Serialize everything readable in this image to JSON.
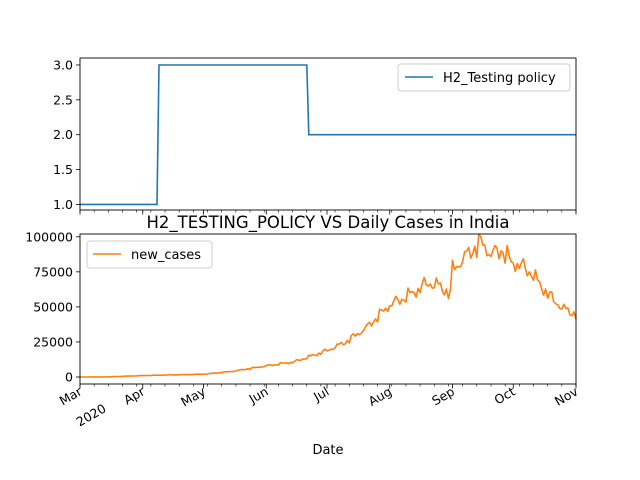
{
  "chart_data": [
    {
      "type": "line",
      "title": "",
      "xlabel": "",
      "ylabel": "",
      "ylim": [
        0.92,
        3.1
      ],
      "yticks": [
        "1.0",
        "1.5",
        "2.0",
        "2.5",
        "3.0"
      ],
      "legend_position": "top-right",
      "grid": false,
      "series": [
        {
          "name": "H2_Testing policy",
          "color": "#1f77b4",
          "step": true,
          "x": [
            "2020-03-01",
            "2020-04-09",
            "2020-06-22",
            "2020-11-01"
          ],
          "values": [
            1,
            3,
            2,
            2
          ]
        }
      ]
    },
    {
      "type": "line",
      "title": "H2_TESTING_POLICY VS Daily Cases in India",
      "xlabel": "Date",
      "ylabel": "",
      "ylim": [
        -5000,
        102000
      ],
      "yticks": [
        "0",
        "25000",
        "50000",
        "75000",
        "100000"
      ],
      "xtick_labels": [
        "Mar",
        "Apr",
        "May",
        "Jun",
        "Jul",
        "Aug",
        "Sep",
        "Oct",
        "Nov"
      ],
      "xtick_year": "2020",
      "legend_position": "top-left",
      "grid": false,
      "series": [
        {
          "name": "new_cases",
          "color": "#ff7f0e",
          "x": [
            "2020-03-01",
            "2020-03-15",
            "2020-04-01",
            "2020-04-15",
            "2020-05-01",
            "2020-05-15",
            "2020-06-01",
            "2020-06-15",
            "2020-07-01",
            "2020-07-10",
            "2020-07-20",
            "2020-07-25",
            "2020-08-01",
            "2020-08-08",
            "2020-08-15",
            "2020-08-20",
            "2020-08-25",
            "2020-08-31",
            "2020-09-01",
            "2020-09-05",
            "2020-09-10",
            "2020-09-16",
            "2020-09-20",
            "2020-09-25",
            "2020-09-30",
            "2020-10-05",
            "2020-10-10",
            "2020-10-15",
            "2020-10-20",
            "2020-10-25",
            "2020-11-01"
          ],
          "values": [
            0,
            100,
            1000,
            1500,
            2000,
            4000,
            8000,
            11000,
            19000,
            25000,
            35000,
            42000,
            52000,
            57000,
            63000,
            68000,
            66000,
            60000,
            78000,
            83000,
            91000,
            97000,
            88000,
            92000,
            83000,
            80000,
            75000,
            65000,
            57000,
            50000,
            45000
          ]
        }
      ]
    }
  ]
}
